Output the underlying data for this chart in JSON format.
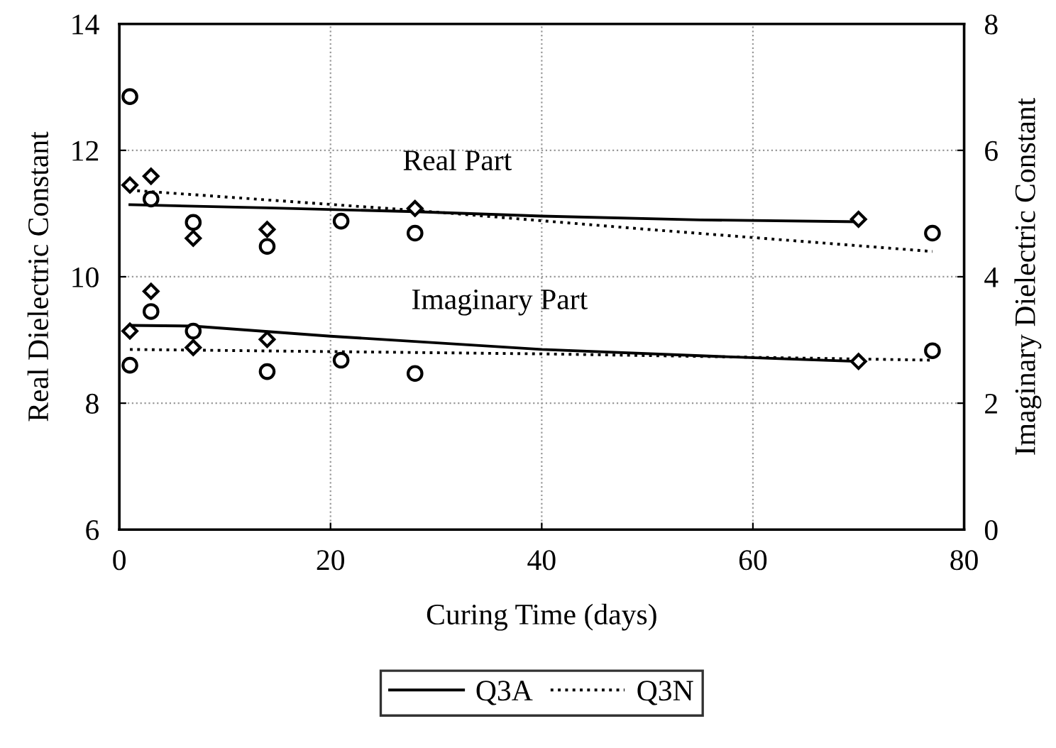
{
  "chart_data": {
    "type": "line",
    "xlabel": "Curing Time (days)",
    "ylabel": "Real Dielectric Constant",
    "y2label": "Imaginary Dielectric Constant",
    "xlim": [
      0,
      80
    ],
    "xticks": [
      0,
      20,
      40,
      60,
      80
    ],
    "ylim": [
      6,
      14
    ],
    "yticks": [
      6,
      8,
      10,
      12,
      14
    ],
    "y2lim": [
      0,
      8
    ],
    "y2ticks": [
      0,
      2,
      4,
      6,
      8
    ],
    "grid": true,
    "legend": "bottom",
    "annotations": [
      "Real Part",
      "Imaginary Part"
    ],
    "series": [
      {
        "name": "Q3A",
        "color": "#000000",
        "line_style": "solid",
        "marker": "none",
        "x": [
          1,
          14,
          28,
          40,
          55,
          70
        ],
        "values": [
          11.14,
          11.09,
          11.03,
          10.96,
          10.9,
          10.87
        ]
      },
      {
        "name": "Q3N",
        "color": "#000000",
        "line_style": "dotted",
        "marker": "none",
        "x": [
          1,
          28,
          50,
          77
        ],
        "values": [
          11.37,
          11.05,
          10.75,
          10.4
        ]
      },
      {
        "axis": "y2",
        "color": "#000000",
        "line_style": "solid",
        "marker": "none",
        "x": [
          1,
          7,
          20,
          40,
          55,
          70
        ],
        "values": [
          3.23,
          3.22,
          3.06,
          2.85,
          2.75,
          2.66
        ]
      },
      {
        "axis": "y2",
        "color": "#000000",
        "line_style": "dotted",
        "marker": "none",
        "x": [
          1,
          40,
          77
        ],
        "values": [
          2.85,
          2.78,
          2.68
        ]
      },
      {
        "type": "scatter",
        "color": "#000000",
        "marker": "diamond",
        "x": [
          1,
          3,
          7,
          14,
          28,
          70
        ],
        "values": [
          11.45,
          11.59,
          10.61,
          10.75,
          11.08,
          10.91
        ]
      },
      {
        "type": "scatter",
        "color": "#000000",
        "marker": "circle",
        "x": [
          1,
          3,
          7,
          14,
          21,
          28,
          77
        ],
        "values": [
          12.85,
          11.23,
          10.86,
          10.48,
          10.88,
          10.69,
          10.69
        ]
      },
      {
        "type": "scatter",
        "axis": "y2",
        "color": "#000000",
        "marker": "diamond",
        "x": [
          1,
          3,
          7,
          14,
          70
        ],
        "values": [
          3.14,
          3.77,
          2.88,
          3.01,
          2.66
        ]
      },
      {
        "type": "scatter",
        "axis": "y2",
        "color": "#000000",
        "marker": "circle",
        "x": [
          1,
          3,
          7,
          14,
          21,
          28,
          77
        ],
        "values": [
          2.6,
          3.45,
          3.14,
          2.5,
          2.68,
          2.47,
          2.83
        ]
      }
    ]
  }
}
